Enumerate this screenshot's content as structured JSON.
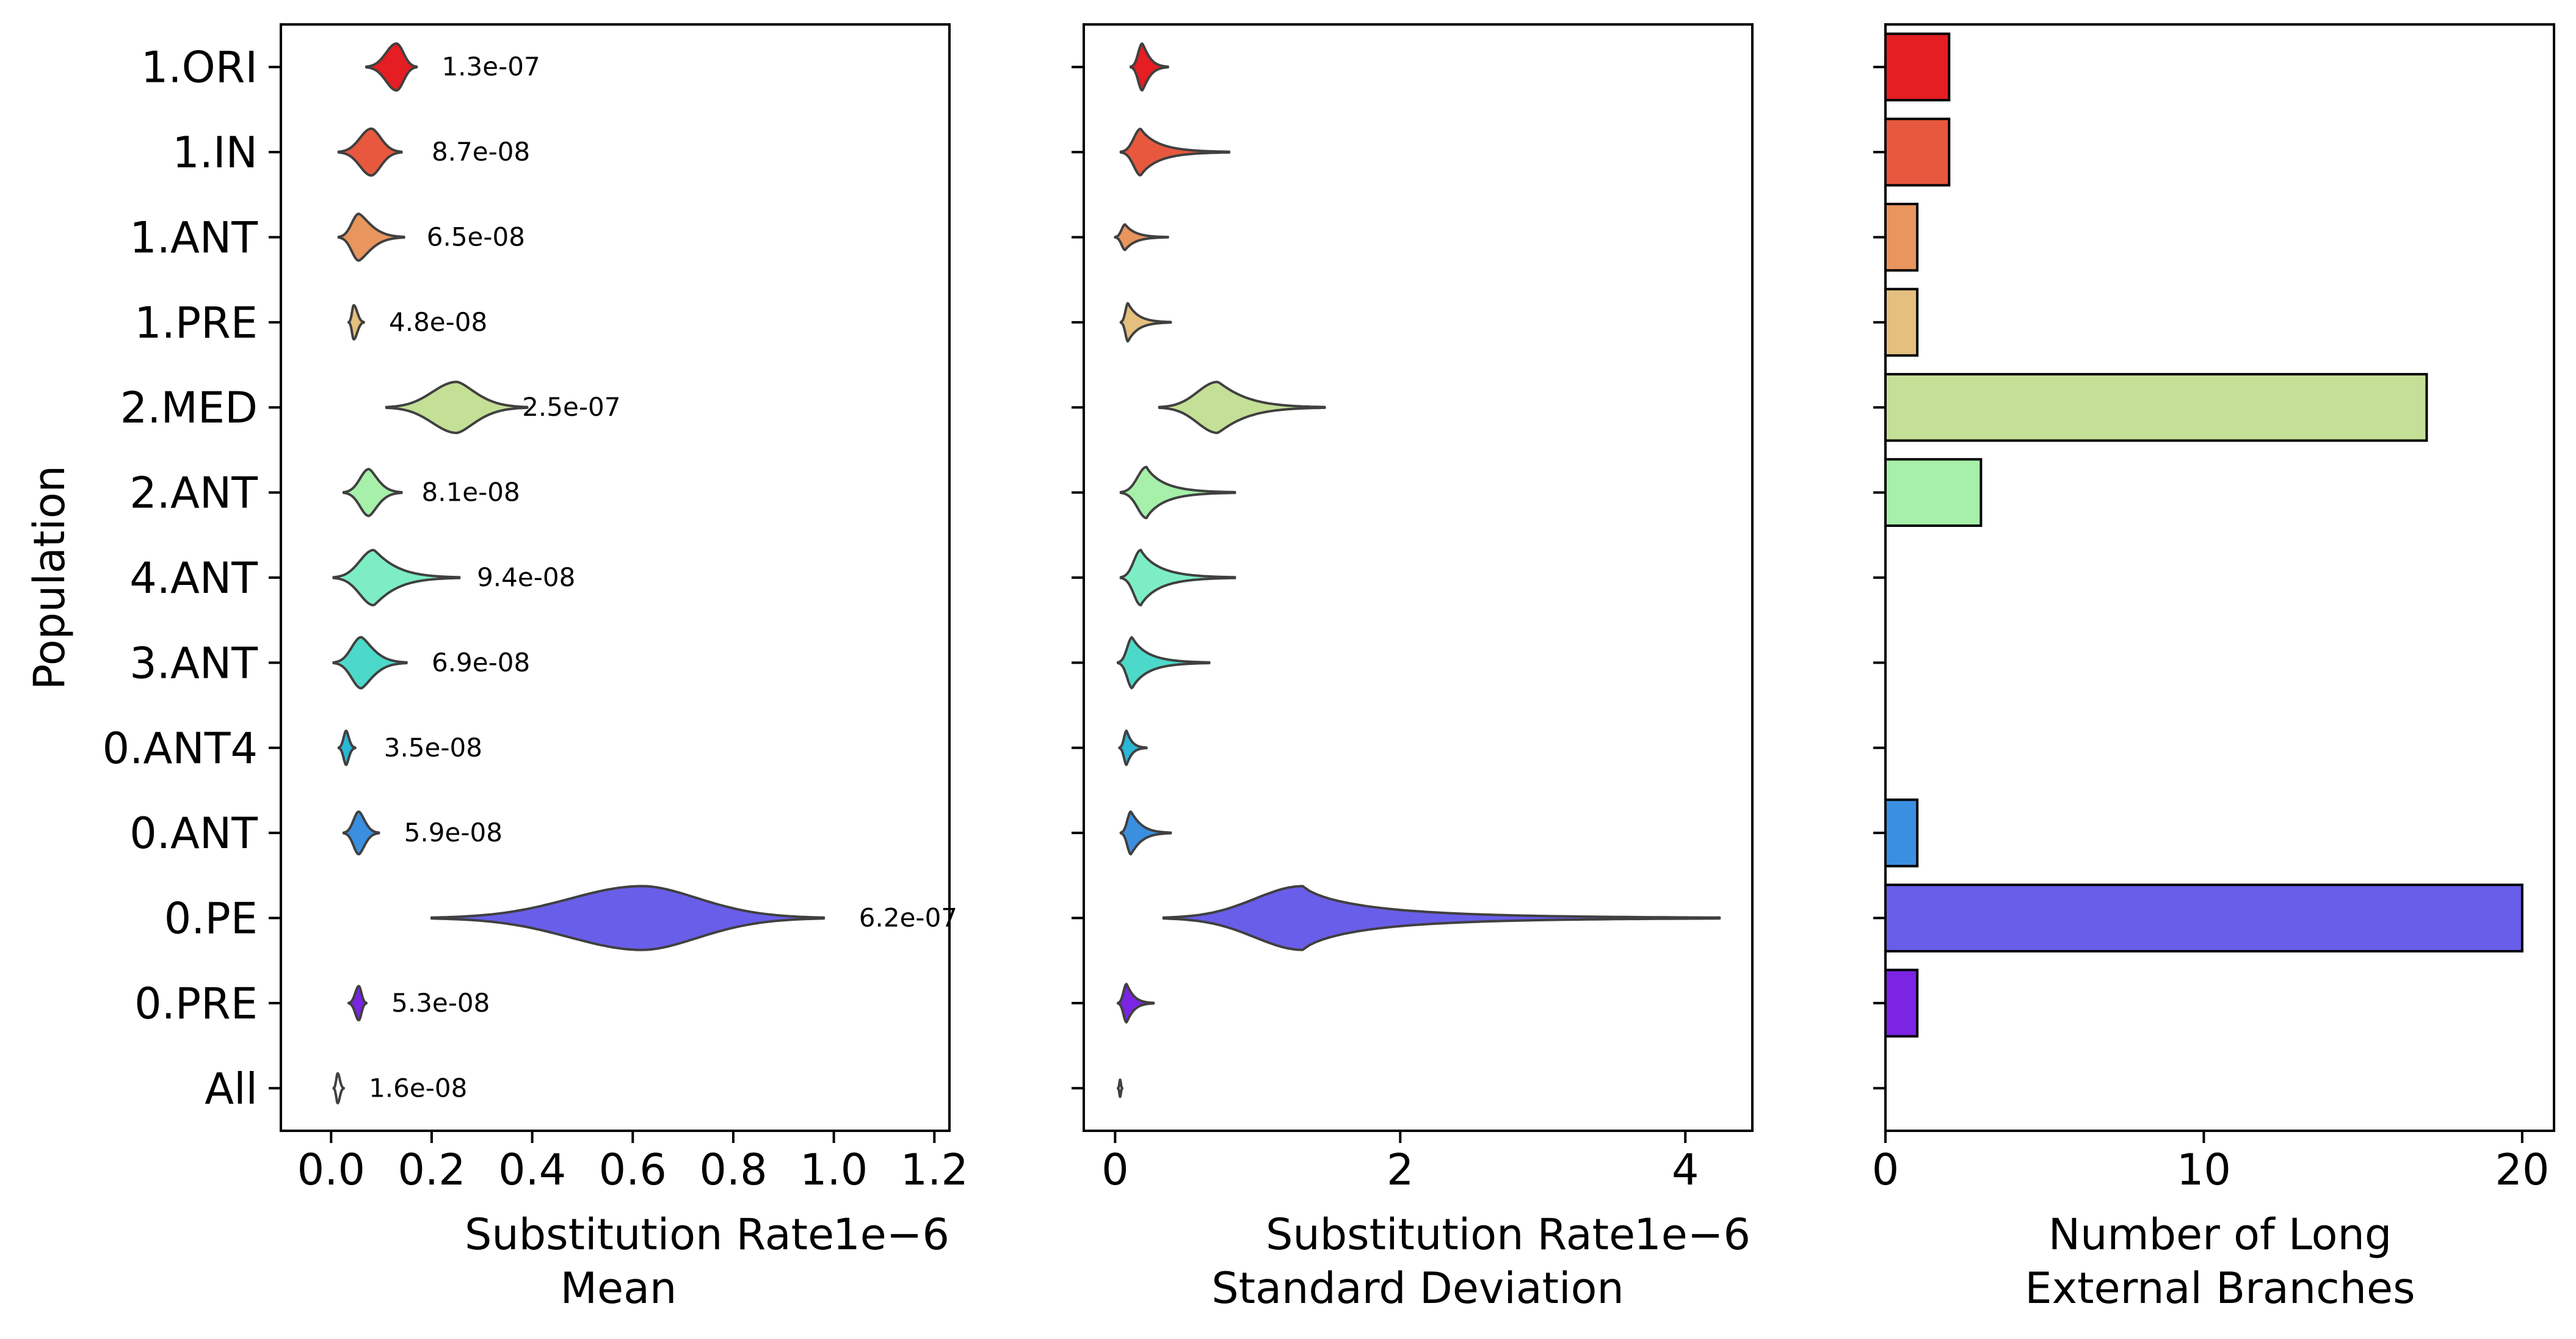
{
  "chart_data": {
    "type": "violin",
    "ylabel": "Population",
    "categories": [
      "1.ORI",
      "1.IN",
      "1.ANT",
      "1.PRE",
      "2.MED",
      "2.ANT",
      "4.ANT",
      "3.ANT",
      "0.ANT4",
      "0.ANT",
      "0.PE",
      "0.PRE",
      "All"
    ],
    "colors": [
      "#e41e22",
      "#e8583e",
      "#e8955e",
      "#e4bf7e",
      "#c4df96",
      "#a6f0aa",
      "#7deec4",
      "#4dd9c9",
      "#2bb6d6",
      "#3b8fe0",
      "#695ee9",
      "#7c24e4",
      "#ffffff"
    ],
    "edge_color": "#404040",
    "panels": [
      {
        "type": "violin",
        "title": "",
        "xlabel": "Substitution Rate\nMean",
        "offset_label": "1e−6",
        "xlim": [
          -0.1,
          1.23
        ],
        "xticks": [
          0.0,
          0.2,
          0.4,
          0.6,
          0.8,
          1.0,
          1.2
        ],
        "xtick_labels": [
          "0.0",
          "0.2",
          "0.4",
          "0.6",
          "0.8",
          "1.0",
          "1.2"
        ],
        "violins": [
          {
            "category": "1.ORI",
            "min": 0.07,
            "max": 0.17,
            "mode": 0.13,
            "width": 0.55,
            "skew": 1.0
          },
          {
            "category": "1.IN",
            "min": 0.015,
            "max": 0.14,
            "mode": 0.08,
            "width": 0.55,
            "skew": 1.1
          },
          {
            "category": "1.ANT",
            "min": 0.015,
            "max": 0.145,
            "mode": 0.055,
            "width": 0.55,
            "skew": 1.4
          },
          {
            "category": "1.PRE",
            "min": 0.035,
            "max": 0.065,
            "mode": 0.045,
            "width": 0.4,
            "skew": 1.0
          },
          {
            "category": "2.MED",
            "min": 0.11,
            "max": 0.39,
            "mode": 0.25,
            "width": 0.6,
            "skew": 1.3
          },
          {
            "category": "2.ANT",
            "min": 0.025,
            "max": 0.14,
            "mode": 0.075,
            "width": 0.55,
            "skew": 1.3
          },
          {
            "category": "4.ANT",
            "min": 0.005,
            "max": 0.255,
            "mode": 0.085,
            "width": 0.65,
            "skew": 1.8
          },
          {
            "category": "3.ANT",
            "min": 0.005,
            "max": 0.15,
            "mode": 0.06,
            "width": 0.6,
            "skew": 1.4
          },
          {
            "category": "0.ANT4",
            "min": 0.015,
            "max": 0.048,
            "mode": 0.03,
            "width": 0.4,
            "skew": 1.2
          },
          {
            "category": "0.ANT",
            "min": 0.025,
            "max": 0.095,
            "mode": 0.055,
            "width": 0.5,
            "skew": 1.2
          },
          {
            "category": "0.PE",
            "min": 0.2,
            "max": 0.98,
            "mode": 0.62,
            "width": 0.75,
            "skew": 1.1
          },
          {
            "category": "0.PRE",
            "min": 0.035,
            "max": 0.07,
            "mode": 0.055,
            "width": 0.4,
            "skew": 1.0
          },
          {
            "category": "All",
            "min": 0.005,
            "max": 0.025,
            "mode": 0.013,
            "width": 0.35,
            "skew": 1.0
          }
        ],
        "annotations": [
          "1.3e-07",
          "8.7e-08",
          "6.5e-08",
          "4.8e-08",
          "2.5e-07",
          "8.1e-08",
          "9.4e-08",
          "6.9e-08",
          "3.5e-08",
          "5.9e-08",
          "6.2e-07",
          "5.3e-08",
          "1.6e-08"
        ],
        "annotation_x": [
          0.22,
          0.2,
          0.19,
          0.115,
          0.38,
          0.18,
          0.29,
          0.2,
          0.105,
          0.145,
          1.05,
          0.12,
          0.075
        ]
      },
      {
        "type": "violin",
        "xlabel": "Substitution Rate\nStandard Deviation",
        "offset_label": "1e−6",
        "xlim": [
          -0.22,
          4.47
        ],
        "xticks": [
          0,
          2,
          4
        ],
        "xtick_labels": [
          "0",
          "2",
          "4"
        ],
        "violins": [
          {
            "category": "1.ORI",
            "min": 0.11,
            "max": 0.37,
            "mode": 0.19,
            "width": 0.55,
            "skew": 1.6
          },
          {
            "category": "1.IN",
            "min": 0.04,
            "max": 0.8,
            "mode": 0.18,
            "width": 0.55,
            "skew": 2.2
          },
          {
            "category": "1.ANT",
            "min": 0.0,
            "max": 0.37,
            "mode": 0.07,
            "width": 0.3,
            "skew": 2.0
          },
          {
            "category": "1.PRE",
            "min": 0.04,
            "max": 0.39,
            "mode": 0.09,
            "width": 0.45,
            "skew": 2.0
          },
          {
            "category": "2.MED",
            "min": 0.31,
            "max": 1.47,
            "mode": 0.72,
            "width": 0.6,
            "skew": 1.8
          },
          {
            "category": "2.ANT",
            "min": 0.04,
            "max": 0.84,
            "mode": 0.22,
            "width": 0.6,
            "skew": 2.2
          },
          {
            "category": "4.ANT",
            "min": 0.04,
            "max": 0.84,
            "mode": 0.18,
            "width": 0.65,
            "skew": 2.2
          },
          {
            "category": "3.ANT",
            "min": 0.02,
            "max": 0.66,
            "mode": 0.12,
            "width": 0.6,
            "skew": 2.2
          },
          {
            "category": "0.ANT4",
            "min": 0.03,
            "max": 0.22,
            "mode": 0.08,
            "width": 0.4,
            "skew": 1.8
          },
          {
            "category": "0.ANT",
            "min": 0.04,
            "max": 0.39,
            "mode": 0.11,
            "width": 0.5,
            "skew": 1.8
          },
          {
            "category": "0.PE",
            "min": 0.34,
            "max": 4.24,
            "mode": 1.32,
            "width": 0.75,
            "skew": 2.6
          },
          {
            "category": "0.PRE",
            "min": 0.02,
            "max": 0.27,
            "mode": 0.08,
            "width": 0.45,
            "skew": 1.8
          },
          {
            "category": "All",
            "min": 0.02,
            "max": 0.05,
            "mode": 0.035,
            "width": 0.2,
            "skew": 1.0
          }
        ]
      },
      {
        "type": "bar",
        "xlabel": "Number of Long\nExternal Branches",
        "xlim": [
          0,
          21
        ],
        "xticks": [
          0,
          10,
          20
        ],
        "xtick_labels": [
          "0",
          "10",
          "20"
        ],
        "values": [
          2,
          2,
          1,
          1,
          17,
          3,
          0,
          0,
          0,
          1,
          20,
          1,
          0
        ]
      }
    ]
  }
}
